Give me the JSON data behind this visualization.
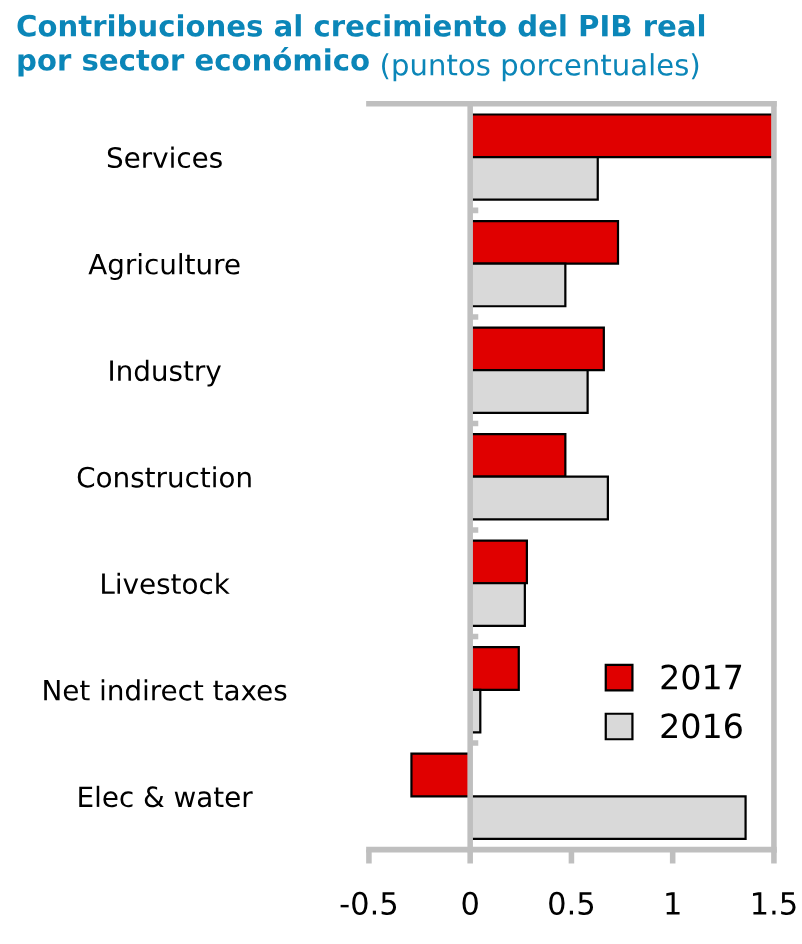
{
  "chart_data": {
    "type": "bar",
    "orientation": "horizontal",
    "title": "Contribuciones al crecimiento del PIB real\npor sector económico",
    "subtitle": "(puntos porcentuales)",
    "categories": [
      "Services",
      "Agriculture",
      "Industry",
      "Construction",
      "Livestock",
      "Net indirect taxes",
      "Elec & water"
    ],
    "series": [
      {
        "name": "2017",
        "color": "#e00000",
        "values": [
          1.5,
          0.73,
          0.66,
          0.47,
          0.28,
          0.24,
          -0.29
        ]
      },
      {
        "name": "2016",
        "color": "#d9d9d9",
        "values": [
          0.63,
          0.47,
          0.58,
          0.68,
          0.27,
          0.05,
          1.36
        ]
      }
    ],
    "xlim": [
      -0.5,
      1.5
    ],
    "xticks": [
      -0.5,
      0,
      0.5,
      1,
      1.5
    ],
    "legend": "bottom right"
  }
}
